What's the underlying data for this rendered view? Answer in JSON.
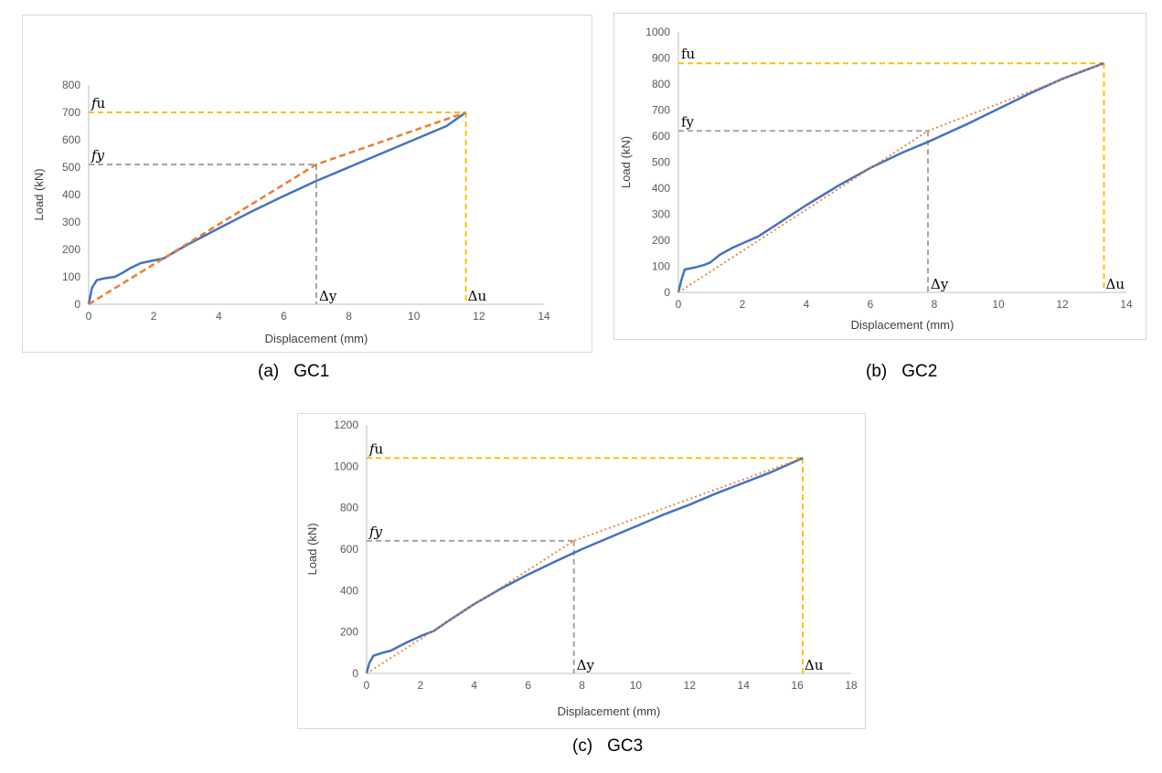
{
  "chart_data": [
    {
      "type": "line",
      "caption_tag": "(a)",
      "caption_name": "GC1",
      "xlabel": "Displacement (mm)",
      "ylabel": "Load (kN)",
      "xlim": [
        0,
        14
      ],
      "ylim": [
        0,
        800
      ],
      "xticks": [
        0,
        2,
        4,
        6,
        8,
        10,
        12,
        14
      ],
      "yticks": [
        0,
        100,
        200,
        300,
        400,
        500,
        600,
        700,
        800
      ],
      "grid": false,
      "colors": {
        "curve": "#4472c4",
        "idealized": "#ed7d31",
        "yield_guide": "#a5a5a5",
        "ultimate_guide": "#ffc000"
      },
      "idealized_style": "dashed",
      "series": [
        {
          "role": "curve",
          "x": [
            0,
            0.1,
            0.25,
            0.5,
            0.8,
            1.0,
            1.3,
            1.6,
            2.0,
            2.3,
            3,
            4,
            5,
            6,
            7,
            8,
            9,
            10,
            11,
            11.6
          ],
          "y": [
            0,
            60,
            88,
            95,
            100,
            112,
            133,
            150,
            160,
            167,
            215,
            277,
            338,
            395,
            450,
            500,
            550,
            600,
            650,
            700
          ]
        },
        {
          "role": "idealized",
          "x": [
            0,
            7.0,
            11.6
          ],
          "y": [
            0,
            510,
            700
          ]
        }
      ],
      "yield": {
        "x": 7.0,
        "y": 510
      },
      "ultimate": {
        "x": 11.6,
        "y": 700
      },
      "annotations": {
        "fu": "𝑓u",
        "fy": "𝑓𝑦",
        "dy": "Δy",
        "du": "Δu"
      }
    },
    {
      "type": "line",
      "caption_tag": "(b)",
      "caption_name": "GC2",
      "xlabel": "Displacement (mm)",
      "ylabel": "Load (kN)",
      "xlim": [
        0,
        14
      ],
      "ylim": [
        0,
        1000
      ],
      "xticks": [
        0,
        2,
        4,
        6,
        8,
        10,
        12,
        14
      ],
      "yticks": [
        0,
        100,
        200,
        300,
        400,
        500,
        600,
        700,
        800,
        900,
        1000
      ],
      "grid": false,
      "colors": {
        "curve": "#4472c4",
        "idealized": "#ed7d31",
        "yield_guide": "#a5a5a5",
        "ultimate_guide": "#ffc000"
      },
      "idealized_style": "dotted",
      "series": [
        {
          "role": "curve",
          "x": [
            0,
            0.1,
            0.2,
            0.5,
            0.8,
            1.0,
            1.3,
            1.7,
            2.0,
            2.5,
            3,
            4,
            5,
            6,
            7,
            7.8,
            9,
            10,
            11,
            12,
            13.3
          ],
          "y": [
            0,
            50,
            88,
            95,
            105,
            115,
            145,
            172,
            188,
            215,
            255,
            335,
            410,
            478,
            537,
            578,
            645,
            705,
            765,
            820,
            880
          ]
        },
        {
          "role": "idealized",
          "x": [
            0,
            7.8,
            13.3
          ],
          "y": [
            0,
            620,
            880
          ]
        }
      ],
      "yield": {
        "x": 7.8,
        "y": 620
      },
      "ultimate": {
        "x": 13.3,
        "y": 880
      },
      "annotations": {
        "fu": "fu",
        "fy": "fy",
        "dy": "Δy",
        "du": "Δu"
      }
    },
    {
      "type": "line",
      "caption_tag": "(c)",
      "caption_name": "GC3",
      "xlabel": "Displacement (mm)",
      "ylabel": "Load (kN)",
      "xlim": [
        0,
        18
      ],
      "ylim": [
        0,
        1200
      ],
      "xticks": [
        0,
        2,
        4,
        6,
        8,
        10,
        12,
        14,
        16,
        18
      ],
      "yticks": [
        0,
        200,
        400,
        600,
        800,
        1000,
        1200
      ],
      "grid": false,
      "colors": {
        "curve": "#4472c4",
        "idealized": "#ed7d31",
        "yield_guide": "#a5a5a5",
        "ultimate_guide": "#ffc000"
      },
      "idealized_style": "dotted",
      "series": [
        {
          "role": "curve",
          "x": [
            0,
            0.1,
            0.25,
            0.6,
            0.9,
            1.2,
            1.5,
            2.0,
            2.5,
            3,
            4,
            5,
            6,
            7,
            8,
            9,
            10,
            11,
            12,
            13,
            14,
            15,
            16.2
          ],
          "y": [
            0,
            50,
            85,
            100,
            110,
            130,
            150,
            180,
            205,
            250,
            335,
            410,
            478,
            540,
            600,
            655,
            710,
            765,
            815,
            870,
            920,
            970,
            1040
          ]
        },
        {
          "role": "idealized",
          "x": [
            0,
            7.7,
            16.2
          ],
          "y": [
            0,
            640,
            1040
          ]
        }
      ],
      "yield": {
        "x": 7.7,
        "y": 640
      },
      "ultimate": {
        "x": 16.2,
        "y": 1040
      },
      "annotations": {
        "fu": "𝑓u",
        "fy": "𝑓𝑦",
        "dy": "Δy",
        "du": "Δu"
      }
    }
  ]
}
